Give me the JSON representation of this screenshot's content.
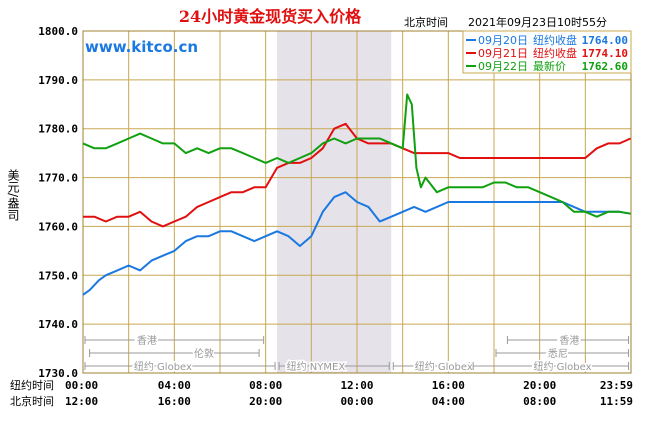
{
  "title": "24小时黄金现货买入价格",
  "watermark": "www.kitco.cn",
  "header_time_label": "北京时间",
  "header_datetime": "2021年09月23日10时55分",
  "ylabel": "美元/盎司",
  "legend": [
    {
      "date": "09月20日",
      "label": "纽约收盘",
      "value": "1764.00",
      "color": "#1a78e0"
    },
    {
      "date": "09月21日",
      "label": "纽约收盘",
      "value": "1774.10",
      "color": "#e01010"
    },
    {
      "date": "09月22日",
      "label": "最新价",
      "value": "1762.60",
      "color": "#10a010"
    }
  ],
  "sessions": {
    "row1": [
      {
        "text": "香港",
        "color": "#999999"
      },
      {
        "text": "香港",
        "color": "#999999"
      }
    ],
    "row2": [
      {
        "text": "伦敦",
        "color": "#999999"
      },
      {
        "text": "悉尼",
        "color": "#999999"
      }
    ],
    "row3": [
      {
        "text": "纽约 Globex",
        "color": "#999999"
      },
      {
        "text": "纽约 NYMEX",
        "color": "#999999"
      },
      {
        "text": "纽约 Globex",
        "color": "#999999"
      },
      {
        "text": "纽约 Globex",
        "color": "#999999"
      }
    ]
  },
  "axis_rows": [
    {
      "label": "纽约时间",
      "ticks": [
        "00:00",
        "04:00",
        "08:00",
        "12:00",
        "16:00",
        "20:00",
        "23:59"
      ]
    },
    {
      "label": "北京时间",
      "ticks": [
        "12:00",
        "16:00",
        "20:00",
        "00:00",
        "04:00",
        "08:00",
        "11:59"
      ]
    }
  ],
  "chart_data": {
    "type": "line",
    "ylim": [
      1730,
      1800
    ],
    "yticks": [
      "1730.0",
      "1740.0",
      "1750.0",
      "1760.0",
      "1770.0",
      "1780.0",
      "1790.0",
      "1800.0"
    ],
    "xlim": [
      0,
      24
    ],
    "grid": true,
    "shaded_region_hours": [
      8.5,
      13.5
    ],
    "series": [
      {
        "name": "09月20日",
        "color": "#1a78e0",
        "x": [
          0,
          0.3,
          0.7,
          1.0,
          1.5,
          2.0,
          2.5,
          3.0,
          3.5,
          4.0,
          4.5,
          5.0,
          5.5,
          6.0,
          6.5,
          7.0,
          7.5,
          8.0,
          8.5,
          9.0,
          9.5,
          10.0,
          10.5,
          11.0,
          11.5,
          12.0,
          12.5,
          13.0,
          13.5,
          14.0,
          14.5,
          15.0,
          15.5,
          16.0,
          16.5,
          17.0,
          17.5,
          18.0,
          18.5,
          19.0,
          19.5,
          20.0,
          20.5,
          21.0,
          21.5,
          22.0,
          22.5,
          23.0,
          23.5,
          23.98
        ],
        "values": [
          1746,
          1747,
          1749,
          1750,
          1751,
          1752,
          1751,
          1753,
          1754,
          1755,
          1757,
          1758,
          1758,
          1759,
          1759,
          1758,
          1757,
          1758,
          1759,
          1758,
          1756,
          1758,
          1763,
          1766,
          1767,
          1765,
          1764,
          1761,
          1762,
          1763,
          1764,
          1763,
          1764,
          1765,
          1765,
          1765,
          1765,
          1765,
          1765,
          1765,
          1765,
          1765,
          1765,
          1765,
          1764,
          1763,
          1763,
          1763,
          1763,
          1762.6
        ]
      },
      {
        "name": "09月21日",
        "color": "#e01010",
        "x": [
          0,
          0.5,
          1.0,
          1.5,
          2.0,
          2.5,
          3.0,
          3.5,
          4.0,
          4.5,
          5.0,
          5.5,
          6.0,
          6.5,
          7.0,
          7.5,
          8.0,
          8.5,
          9.0,
          9.5,
          10.0,
          10.5,
          11.0,
          11.5,
          12.0,
          12.5,
          13.0,
          13.5,
          14.0,
          14.5,
          15.0,
          15.5,
          16.0,
          16.5,
          17.0,
          17.5,
          18.0,
          18.5,
          19.0,
          19.5,
          20.0,
          20.5,
          21.0,
          21.5,
          22.0,
          22.5,
          23.0,
          23.5,
          23.98
        ],
        "values": [
          1762,
          1762,
          1761,
          1762,
          1762,
          1763,
          1761,
          1760,
          1761,
          1762,
          1764,
          1765,
          1766,
          1767,
          1767,
          1768,
          1768,
          1772,
          1773,
          1773,
          1774,
          1776,
          1780,
          1781,
          1778,
          1777,
          1777,
          1777,
          1776,
          1775,
          1775,
          1775,
          1775,
          1774,
          1774,
          1774,
          1774,
          1774,
          1774,
          1774,
          1774,
          1774,
          1774,
          1774,
          1774,
          1776,
          1777,
          1777,
          1778
        ]
      },
      {
        "name": "09月22日",
        "color": "#10a010",
        "x": [
          0,
          0.5,
          1.0,
          1.5,
          2.0,
          2.5,
          3.0,
          3.5,
          4.0,
          4.5,
          5.0,
          5.5,
          6.0,
          6.5,
          7.0,
          7.5,
          8.0,
          8.5,
          9.0,
          9.5,
          10.0,
          10.5,
          11.0,
          11.5,
          12.0,
          12.5,
          13.0,
          13.5,
          14.0,
          14.2,
          14.4,
          14.6,
          14.8,
          15.0,
          15.5,
          16.0,
          16.5,
          17.0,
          17.5,
          18.0,
          18.5,
          19.0,
          19.5,
          20.0,
          20.5,
          21.0,
          21.5,
          22.0,
          22.5,
          23.0,
          23.5,
          23.98
        ],
        "values": [
          1777,
          1776,
          1776,
          1777,
          1778,
          1779,
          1778,
          1777,
          1777,
          1775,
          1776,
          1775,
          1776,
          1776,
          1775,
          1774,
          1773,
          1774,
          1773,
          1774,
          1775,
          1777,
          1778,
          1777,
          1778,
          1778,
          1778,
          1777,
          1776,
          1787,
          1785,
          1772,
          1768,
          1770,
          1767,
          1768,
          1768,
          1768,
          1768,
          1769,
          1769,
          1768,
          1768,
          1767,
          1766,
          1765,
          1763,
          1763,
          1762,
          1763,
          1763,
          1762.6
        ]
      }
    ]
  }
}
